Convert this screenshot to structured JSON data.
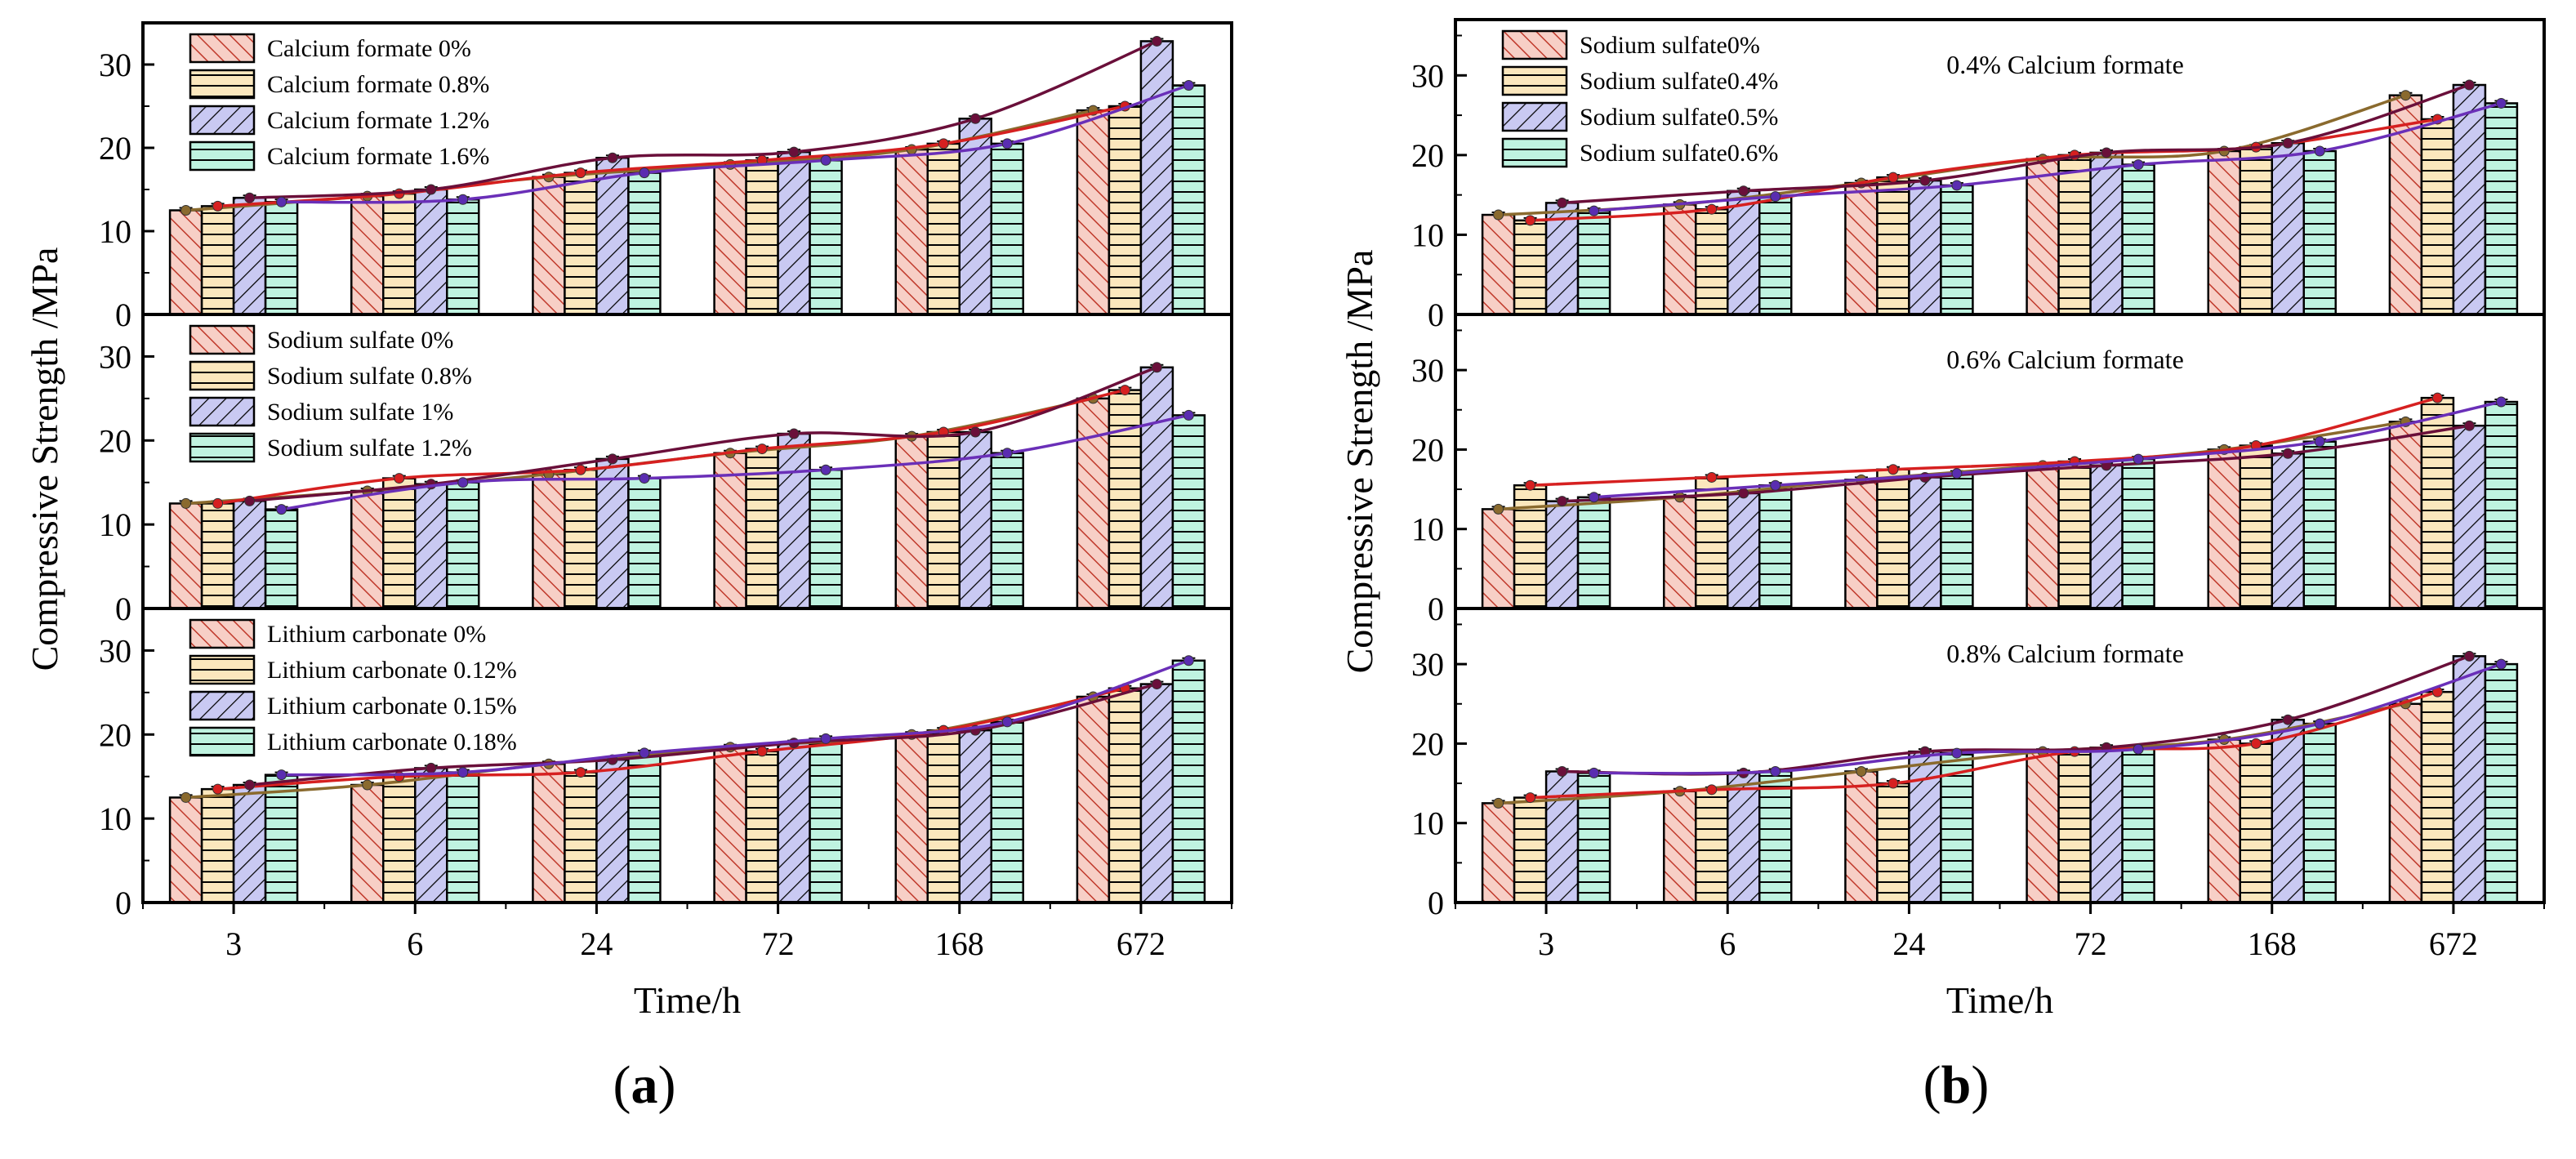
{
  "figure": {
    "panel_labels": [
      "(a)",
      "(b)"
    ],
    "panel_label_bold_letters": [
      "a",
      "b"
    ]
  },
  "chart_data": [
    {
      "panel": "a",
      "type": "bar",
      "xlabel": "Time/h",
      "ylabel": "Compressive Strength /MPa",
      "categories": [
        "3",
        "6",
        "24",
        "72",
        "168",
        "672"
      ],
      "subplots": [
        {
          "ylim": [
            0,
            35
          ],
          "yticks": [
            0,
            10,
            20,
            30
          ],
          "annotation": "",
          "legend_position": "top-left",
          "series": [
            {
              "name": "Calcium formate 0%",
              "values": [
                12.5,
                14.2,
                16.5,
                18.0,
                19.8,
                24.5
              ]
            },
            {
              "name": "Calcium formate 0.8%",
              "values": [
                13.0,
                14.5,
                17.0,
                18.5,
                20.5,
                25.0
              ]
            },
            {
              "name": "Calcium formate 1.2%",
              "values": [
                14.0,
                15.0,
                18.8,
                19.5,
                23.5,
                32.8
              ]
            },
            {
              "name": "Calcium formate 1.6%",
              "values": [
                13.5,
                13.8,
                17.0,
                18.5,
                20.5,
                27.5
              ]
            }
          ]
        },
        {
          "ylim": [
            0,
            35
          ],
          "yticks": [
            0,
            10,
            20,
            30
          ],
          "annotation": "",
          "legend_position": "top-left",
          "series": [
            {
              "name": "Sodium sulfate 0%",
              "values": [
                12.5,
                14.0,
                16.0,
                18.5,
                20.5,
                25.0
              ]
            },
            {
              "name": "Sodium sulfate 0.8%",
              "values": [
                12.5,
                15.5,
                16.5,
                19.0,
                21.0,
                26.0
              ]
            },
            {
              "name": "Sodium sulfate 1%",
              "values": [
                12.8,
                14.8,
                17.8,
                20.8,
                21.0,
                28.7
              ]
            },
            {
              "name": "Sodium sulfate 1.2%",
              "values": [
                11.8,
                15.0,
                15.5,
                16.5,
                18.5,
                23.0
              ]
            }
          ]
        },
        {
          "ylim": [
            0,
            35
          ],
          "yticks": [
            0,
            10,
            20,
            30
          ],
          "annotation": "",
          "legend_position": "top-left",
          "series": [
            {
              "name": "Lithium carbonate 0%",
              "values": [
                12.5,
                14.0,
                16.5,
                18.5,
                20.0,
                24.5
              ]
            },
            {
              "name": "Lithium carbonate 0.12%",
              "values": [
                13.5,
                15.0,
                15.5,
                18.0,
                20.5,
                25.5
              ]
            },
            {
              "name": "Lithium carbonate 0.15%",
              "values": [
                14.0,
                16.0,
                17.0,
                19.0,
                20.5,
                26.0
              ]
            },
            {
              "name": "Lithium carbonate 0.18%",
              "values": [
                15.2,
                15.5,
                17.8,
                19.5,
                21.5,
                28.8
              ]
            }
          ]
        }
      ]
    },
    {
      "panel": "b",
      "type": "bar",
      "xlabel": "Time/h",
      "ylabel": "Compressive Strength /MPa",
      "categories": [
        "3",
        "6",
        "24",
        "72",
        "168",
        "672"
      ],
      "subplots": [
        {
          "ylim": [
            0,
            37
          ],
          "yticks": [
            0,
            10,
            20,
            30
          ],
          "annotation": "0.4% Calcium formate",
          "legend_position": "top-left",
          "series": [
            {
              "name": "Sodium sulfate0%",
              "values": [
                12.5,
                13.8,
                16.5,
                19.5,
                20.5,
                27.5
              ]
            },
            {
              "name": "Sodium sulfate0.4%",
              "values": [
                11.8,
                13.2,
                17.2,
                20.0,
                21.0,
                24.5
              ]
            },
            {
              "name": "Sodium sulfate0.5%",
              "values": [
                14.0,
                15.5,
                16.8,
                20.3,
                21.5,
                28.8
              ]
            },
            {
              "name": "Sodium sulfate0.6%",
              "values": [
                13.0,
                14.8,
                16.2,
                18.8,
                20.5,
                26.5
              ]
            }
          ]
        },
        {
          "ylim": [
            0,
            37
          ],
          "yticks": [
            0,
            10,
            20,
            30
          ],
          "annotation": "0.6% Calcium formate",
          "legend_position": "",
          "series": [
            {
              "name": "Sodium sulfate0%",
              "values": [
                12.5,
                14.0,
                16.2,
                18.0,
                20.0,
                23.5
              ]
            },
            {
              "name": "Sodium sulfate0.4%",
              "values": [
                15.5,
                16.5,
                17.5,
                18.5,
                20.5,
                26.5
              ]
            },
            {
              "name": "Sodium sulfate0.5%",
              "values": [
                13.5,
                14.5,
                16.5,
                18.0,
                19.5,
                23.0
              ]
            },
            {
              "name": "Sodium sulfate0.6%",
              "values": [
                14.0,
                15.5,
                17.0,
                18.8,
                21.0,
                26.0
              ]
            }
          ]
        },
        {
          "ylim": [
            0,
            37
          ],
          "yticks": [
            0,
            10,
            20,
            30
          ],
          "annotation": "0.8% Calcium formate",
          "legend_position": "",
          "series": [
            {
              "name": "Sodium sulfate0%",
              "values": [
                12.5,
                14.0,
                16.5,
                19.0,
                20.5,
                25.0
              ]
            },
            {
              "name": "Sodium sulfate0.4%",
              "values": [
                13.2,
                14.2,
                15.0,
                19.0,
                20.0,
                26.5
              ]
            },
            {
              "name": "Sodium sulfate0.5%",
              "values": [
                16.5,
                16.3,
                19.0,
                19.5,
                23.0,
                31.0
              ]
            },
            {
              "name": "Sodium sulfate0.6%",
              "values": [
                16.3,
                16.5,
                18.8,
                19.3,
                22.5,
                30.0
              ]
            }
          ]
        }
      ]
    }
  ]
}
